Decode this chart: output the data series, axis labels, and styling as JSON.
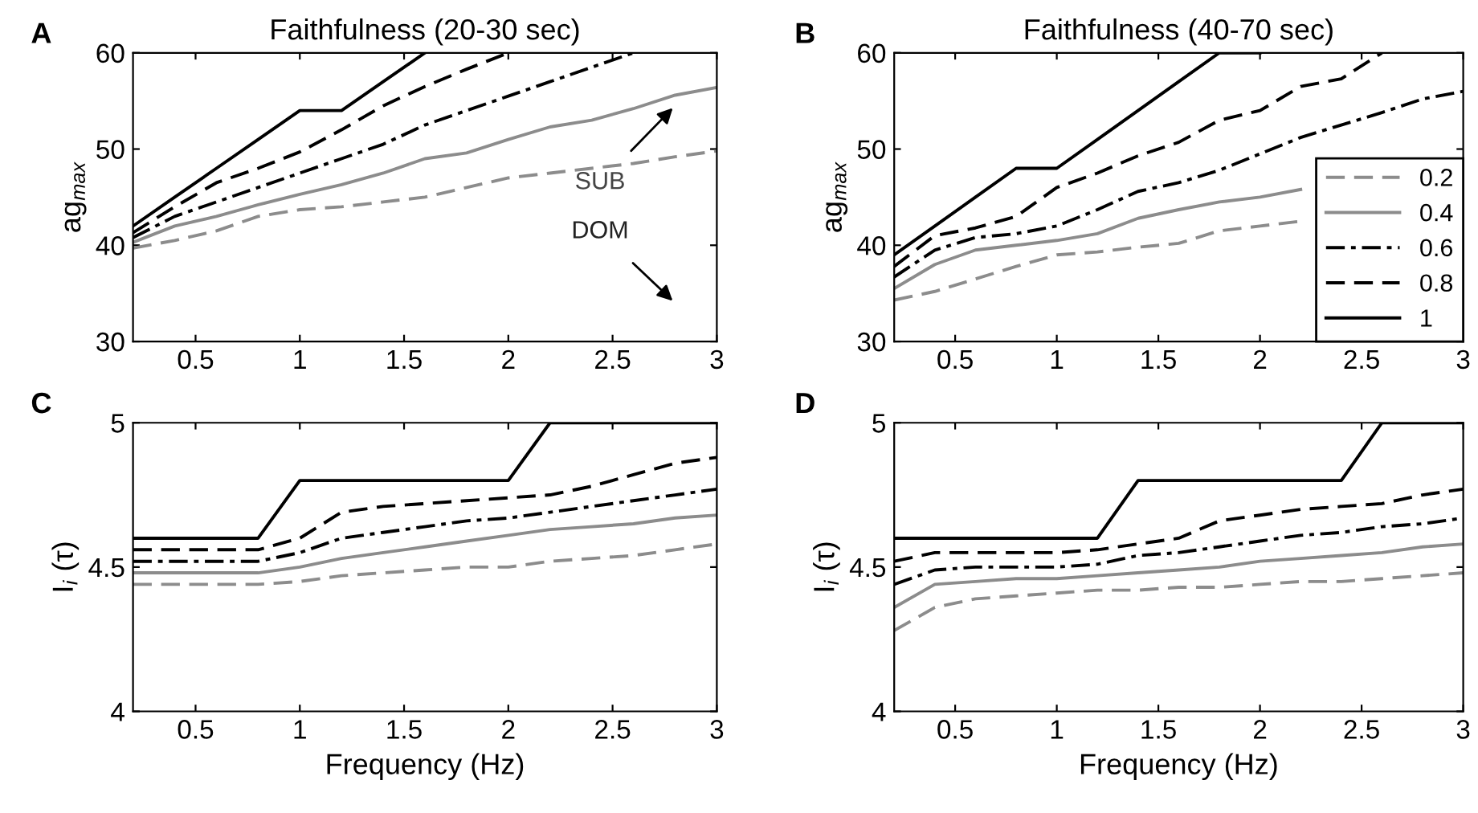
{
  "chart_data": [
    {
      "type": "line",
      "title": "Faithfulness (20-30 sec)",
      "ylabel": "ag$_{max}$",
      "annotations": [
        "A",
        "SUB",
        "DOM"
      ],
      "x": [
        0.2,
        0.4,
        0.6,
        0.8,
        1.0,
        1.2,
        1.4,
        1.6,
        1.8,
        2.0,
        2.2,
        2.4,
        2.6,
        2.8,
        3.0
      ],
      "xlim": [
        0.2,
        3
      ],
      "xticks": [
        0.5,
        1,
        1.5,
        2,
        2.5,
        3
      ],
      "ylim": [
        30,
        60
      ],
      "yticks": [
        30,
        40,
        50,
        60
      ],
      "grid": false,
      "legend": false,
      "series": [
        {
          "color": "#8c8c8c",
          "line_style": "dashed",
          "values": [
            39.7,
            40.5,
            41.5,
            43,
            43.7,
            44,
            44.5,
            45,
            46,
            47,
            47.5,
            48,
            48.5,
            49.2,
            49.8
          ]
        },
        {
          "color": "#8c8c8c",
          "line_style": "solid",
          "values": [
            40.3,
            42,
            43,
            44.2,
            45.3,
            46.3,
            47.5,
            49,
            49.6,
            51,
            52.3,
            53,
            54.2,
            55.6,
            56.4
          ]
        },
        {
          "color": "#000000",
          "line_style": "dashdot",
          "x": [
            0.2,
            0.4,
            0.6,
            0.8,
            1.0,
            1.2,
            1.4,
            1.6,
            1.8,
            2.0,
            2.2,
            2.4,
            2.6
          ],
          "values": [
            40.8,
            43,
            44.5,
            46,
            47.5,
            49,
            50.5,
            52.5,
            54,
            55.5,
            57,
            58.5,
            60
          ]
        },
        {
          "color": "#000000",
          "line_style": "dashed",
          "x": [
            0.2,
            0.4,
            0.6,
            0.8,
            1.0,
            1.2,
            1.4,
            1.6,
            1.8,
            2.0
          ],
          "values": [
            41.3,
            44,
            46.5,
            48,
            49.7,
            52,
            54.5,
            56.5,
            58.3,
            60
          ]
        },
        {
          "color": "#000000",
          "line_style": "solid",
          "x": [
            0.2,
            0.4,
            0.6,
            0.8,
            1.0,
            1.2,
            1.4,
            1.6
          ],
          "values": [
            42,
            45,
            48,
            51,
            54,
            54,
            57,
            60
          ]
        }
      ]
    },
    {
      "type": "line",
      "title": "Faithfulness (40-70 sec)",
      "ylabel": "ag$_{max}$",
      "annotations": [
        "B"
      ],
      "x": [
        0.2,
        0.4,
        0.6,
        0.8,
        1.0,
        1.2,
        1.4,
        1.6,
        1.8,
        2.0,
        2.2,
        2.4,
        2.6,
        2.8,
        3.0
      ],
      "xlim": [
        0.2,
        3
      ],
      "xticks": [
        0.5,
        1,
        1.5,
        2,
        2.5,
        3
      ],
      "ylim": [
        30,
        60
      ],
      "yticks": [
        30,
        40,
        50,
        60
      ],
      "grid": false,
      "legend": "bottom right",
      "series": [
        {
          "name": "0.2",
          "color": "#8c8c8c",
          "line_style": "dashed",
          "values": [
            34.3,
            35.2,
            36.5,
            37.8,
            39,
            39.3,
            39.8,
            40.2,
            41.5,
            42,
            42.5,
            null,
            null,
            null,
            null
          ]
        },
        {
          "name": "0.4",
          "color": "#8c8c8c",
          "line_style": "solid",
          "values": [
            35.5,
            38,
            39.5,
            40,
            40.5,
            41.2,
            42.8,
            43.7,
            44.5,
            45,
            45.8,
            null,
            null,
            null,
            null
          ]
        },
        {
          "name": "0.6",
          "color": "#000000",
          "line_style": "dashdot",
          "values": [
            36.7,
            39.5,
            40.8,
            41.2,
            42,
            43.7,
            45.6,
            46.5,
            47.8,
            49.5,
            51.2,
            52.5,
            53.8,
            55.2,
            56
          ]
        },
        {
          "name": "0.8",
          "color": "#000000",
          "line_style": "dashed",
          "x": [
            0.2,
            0.4,
            0.6,
            0.8,
            1.0,
            1.2,
            1.4,
            1.6,
            1.8,
            2.0,
            2.2,
            2.4,
            2.6
          ],
          "values": [
            37.8,
            41,
            41.8,
            43,
            46,
            47.5,
            49.3,
            50.7,
            53,
            54,
            56.5,
            57.3,
            60
          ]
        },
        {
          "name": "1",
          "color": "#000000",
          "line_style": "solid",
          "x": [
            0.2,
            0.4,
            0.6,
            0.8,
            1.0,
            1.2,
            1.4,
            1.6,
            1.8,
            2.0
          ],
          "values": [
            39,
            42,
            45,
            48,
            48,
            51,
            54,
            57,
            60,
            60
          ]
        }
      ]
    },
    {
      "type": "line",
      "xlabel": "Frequency (Hz)",
      "ylabel": "I$_{i}$ (τ)",
      "annotations": [
        "C"
      ],
      "x": [
        0.2,
        0.4,
        0.6,
        0.8,
        1.0,
        1.2,
        1.4,
        1.6,
        1.8,
        2.0,
        2.2,
        2.4,
        2.6,
        2.8,
        3.0
      ],
      "xlim": [
        0.2,
        3
      ],
      "xticks": [
        0.5,
        1,
        1.5,
        2,
        2.5,
        3
      ],
      "ylim": [
        4,
        5
      ],
      "yticks": [
        4,
        4.5,
        5
      ],
      "grid": false,
      "legend": false,
      "series": [
        {
          "color": "#8c8c8c",
          "line_style": "dashed",
          "values": [
            4.44,
            4.44,
            4.44,
            4.44,
            4.45,
            4.47,
            4.48,
            4.49,
            4.5,
            4.5,
            4.52,
            4.53,
            4.54,
            4.56,
            4.58
          ]
        },
        {
          "color": "#8c8c8c",
          "line_style": "solid",
          "values": [
            4.48,
            4.48,
            4.48,
            4.48,
            4.5,
            4.53,
            4.55,
            4.57,
            4.59,
            4.61,
            4.63,
            4.64,
            4.65,
            4.67,
            4.68
          ]
        },
        {
          "color": "#000000",
          "line_style": "dashdot",
          "values": [
            4.52,
            4.52,
            4.52,
            4.52,
            4.55,
            4.6,
            4.62,
            4.64,
            4.66,
            4.67,
            4.69,
            4.71,
            4.73,
            4.75,
            4.77
          ]
        },
        {
          "color": "#000000",
          "line_style": "dashed",
          "values": [
            4.56,
            4.56,
            4.56,
            4.56,
            4.6,
            4.69,
            4.71,
            4.72,
            4.73,
            4.74,
            4.75,
            4.78,
            4.82,
            4.86,
            4.88
          ]
        },
        {
          "color": "#000000",
          "line_style": "solid",
          "values": [
            4.6,
            4.6,
            4.6,
            4.6,
            4.8,
            4.8,
            4.8,
            4.8,
            4.8,
            4.8,
            5,
            5,
            5,
            5,
            5
          ]
        }
      ]
    },
    {
      "type": "line",
      "xlabel": "Frequency (Hz)",
      "ylabel": "I$_{i}$ (τ)",
      "annotations": [
        "D"
      ],
      "x": [
        0.2,
        0.4,
        0.6,
        0.8,
        1.0,
        1.2,
        1.4,
        1.6,
        1.8,
        2.0,
        2.2,
        2.4,
        2.6,
        2.8,
        3.0
      ],
      "xlim": [
        0.2,
        3
      ],
      "xticks": [
        0.5,
        1,
        1.5,
        2,
        2.5,
        3
      ],
      "ylim": [
        4,
        5
      ],
      "yticks": [
        4,
        4.5,
        5
      ],
      "grid": false,
      "legend": false,
      "series": [
        {
          "color": "#8c8c8c",
          "line_style": "dashed",
          "values": [
            4.28,
            4.36,
            4.39,
            4.4,
            4.41,
            4.42,
            4.42,
            4.43,
            4.43,
            4.44,
            4.45,
            4.45,
            4.46,
            4.47,
            4.48
          ]
        },
        {
          "color": "#8c8c8c",
          "line_style": "solid",
          "values": [
            4.36,
            4.44,
            4.45,
            4.46,
            4.46,
            4.47,
            4.48,
            4.49,
            4.5,
            4.52,
            4.53,
            4.54,
            4.55,
            4.57,
            4.58
          ]
        },
        {
          "color": "#000000",
          "line_style": "dashdot",
          "values": [
            4.44,
            4.49,
            4.5,
            4.5,
            4.5,
            4.51,
            4.54,
            4.55,
            4.57,
            4.59,
            4.61,
            4.62,
            4.64,
            4.65,
            4.67
          ]
        },
        {
          "color": "#000000",
          "line_style": "dashed",
          "values": [
            4.52,
            4.55,
            4.55,
            4.55,
            4.55,
            4.56,
            4.58,
            4.6,
            4.66,
            4.68,
            4.7,
            4.71,
            4.72,
            4.75,
            4.77
          ]
        },
        {
          "color": "#000000",
          "line_style": "solid",
          "values": [
            4.6,
            4.6,
            4.6,
            4.6,
            4.6,
            4.6,
            4.8,
            4.8,
            4.8,
            4.8,
            4.8,
            4.8,
            5,
            5,
            5
          ]
        }
      ]
    }
  ]
}
